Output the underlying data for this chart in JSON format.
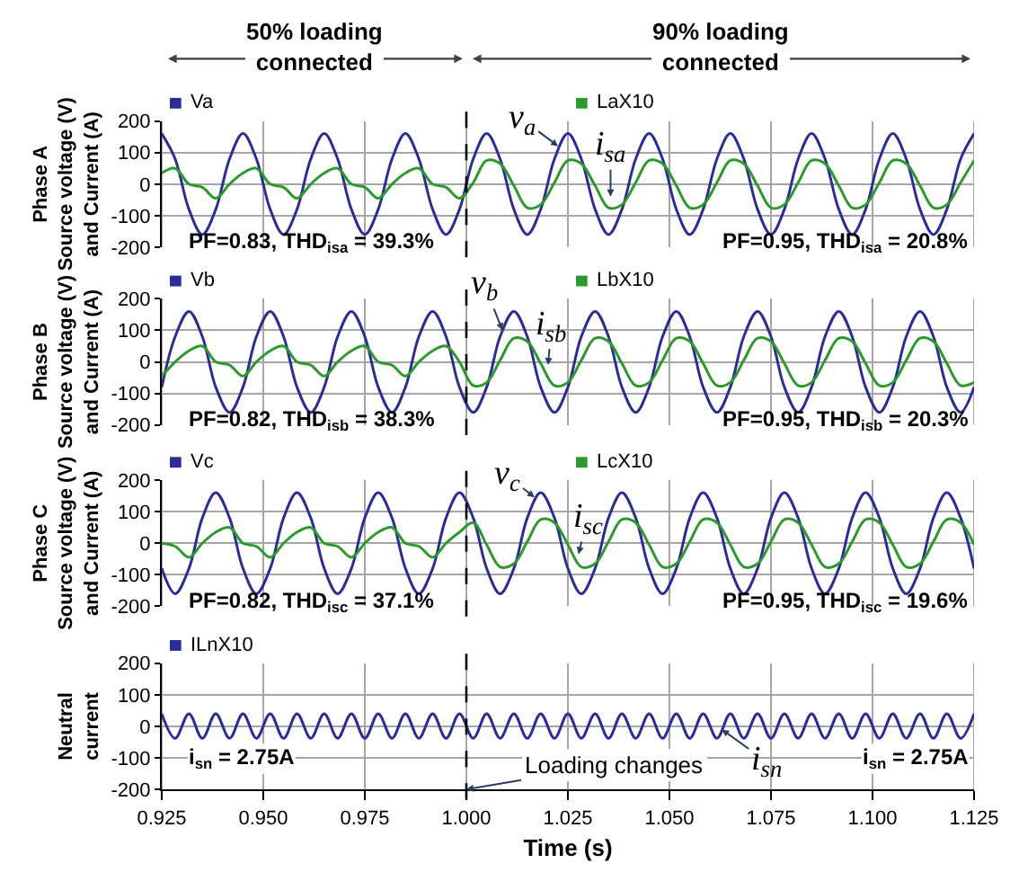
{
  "chart_data": [
    {
      "type": "line",
      "ylabel": "Phase A\nSource voltage (V)\nand Current (A)",
      "xlim": [
        0.925,
        1.125
      ],
      "xticks": [
        0.925,
        0.95,
        0.975,
        1.0,
        1.025,
        1.05,
        1.075,
        1.1,
        1.125
      ],
      "ylim": [
        -200,
        200
      ],
      "yticks": [
        -200,
        -100,
        0,
        100,
        200
      ],
      "grid": true,
      "legend": "top",
      "tick_labels": "y",
      "x": [
        0.925,
        0.9283,
        0.9317,
        0.935,
        0.9383,
        0.9417,
        0.945,
        0.9483,
        0.9517,
        0.955,
        0.9583,
        0.9617,
        0.965,
        0.9683,
        0.9717,
        0.975,
        0.9783,
        0.9817,
        0.985,
        0.9883,
        0.9917,
        0.995,
        0.9983,
        1.0017,
        1.005,
        1.0083,
        1.0117,
        1.015,
        1.0183,
        1.0217,
        1.025,
        1.0283,
        1.0317,
        1.035,
        1.0383,
        1.0417,
        1.045,
        1.0483,
        1.0517,
        1.055,
        1.0583,
        1.0617,
        1.065,
        1.0683,
        1.0717,
        1.075,
        1.0783,
        1.0817,
        1.085,
        1.0883,
        1.0917,
        1.095,
        1.0983,
        1.1017,
        1.105,
        1.1083,
        1.1117,
        1.115,
        1.1183,
        1.1217,
        1.125
      ],
      "ref_lines": [
        {
          "axis": "x",
          "value": 1.0,
          "line_style": "dashed"
        }
      ],
      "annotations": [
        "50% loading\nconnected",
        "90% loading\nconnected",
        "PF=0.83, THD$_{isa}$ = 39.3%",
        "PF=0.95, THD$_{isa}$ = 20.8%",
        {
          "text": "v$_{a}$",
          "x": 1.0226,
          "y": 120
        },
        {
          "text": "i$_{sa}$",
          "x": 1.0355,
          "y": -40
        }
      ],
      "series": [
        {
          "name": "Va",
          "color": "#2b2b9a",
          "values": [
            160,
            80,
            -80,
            -160,
            -80,
            80,
            160,
            80,
            -80,
            -160,
            -80,
            80,
            160,
            80,
            -80,
            -160,
            -80,
            80,
            160,
            80,
            -80,
            -160,
            -80,
            80,
            160,
            80,
            -80,
            -160,
            -80,
            80,
            160,
            80,
            -80,
            -160,
            -80,
            80,
            160,
            80,
            -80,
            -160,
            -80,
            80,
            160,
            80,
            -80,
            -160,
            -80,
            80,
            160,
            80,
            -80,
            -160,
            -80,
            80,
            160,
            80,
            -80,
            -160,
            -80,
            80,
            160
          ]
        },
        {
          "name": "LaX10",
          "color": "#2a9a2a",
          "values": [
            35,
            50,
            0,
            -10,
            -45,
            0,
            35,
            50,
            0,
            -10,
            -45,
            0,
            35,
            50,
            0,
            -10,
            -45,
            0,
            35,
            50,
            0,
            -10,
            -45,
            5,
            75,
            65,
            -5,
            -75,
            -65,
            5,
            75,
            65,
            -5,
            -75,
            -65,
            5,
            75,
            65,
            -5,
            -75,
            -65,
            5,
            75,
            65,
            -5,
            -75,
            -65,
            5,
            75,
            65,
            -5,
            -75,
            -65,
            5,
            75,
            65,
            -5,
            -75,
            -65,
            5,
            75
          ]
        }
      ]
    },
    {
      "type": "line",
      "ylabel": "Phase B\nSource voltage (V)\nand Current (A)",
      "xlim": [
        0.925,
        1.125
      ],
      "xticks": [
        0.925,
        0.95,
        0.975,
        1.0,
        1.025,
        1.05,
        1.075,
        1.1,
        1.125
      ],
      "ylim": [
        -200,
        200
      ],
      "yticks": [
        -200,
        -100,
        0,
        100,
        200
      ],
      "grid": true,
      "legend": "top",
      "tick_labels": "y",
      "x": [
        0.925,
        0.9283,
        0.9317,
        0.935,
        0.9383,
        0.9417,
        0.945,
        0.9483,
        0.9517,
        0.955,
        0.9583,
        0.9617,
        0.965,
        0.9683,
        0.9717,
        0.975,
        0.9783,
        0.9817,
        0.985,
        0.9883,
        0.9917,
        0.995,
        0.9983,
        1.0017,
        1.005,
        1.0083,
        1.0117,
        1.015,
        1.0183,
        1.0217,
        1.025,
        1.0283,
        1.0317,
        1.035,
        1.0383,
        1.0417,
        1.045,
        1.0483,
        1.0517,
        1.055,
        1.0583,
        1.0617,
        1.065,
        1.0683,
        1.0717,
        1.075,
        1.0783,
        1.0817,
        1.085,
        1.0883,
        1.0917,
        1.095,
        1.0983,
        1.1017,
        1.105,
        1.1083,
        1.1117,
        1.115,
        1.1183,
        1.1217,
        1.125
      ],
      "ref_lines": [
        {
          "axis": "x",
          "value": 1.0,
          "line_style": "dashed"
        }
      ],
      "annotations": [
        "PF=0.82, THD$_{isb}$ = 38.3%",
        "PF=0.95, THD$_{isb}$ = 20.3%",
        {
          "text": "v$_{b}$",
          "x": 1.0089,
          "y": 100
        },
        {
          "text": "i$_{sb}$",
          "x": 1.0201,
          "y": -10
        }
      ],
      "series": [
        {
          "name": "Vb",
          "color": "#2b2b9a",
          "values": [
            -80,
            80,
            160,
            80,
            -80,
            -160,
            -80,
            80,
            160,
            80,
            -80,
            -160,
            -80,
            80,
            160,
            80,
            -80,
            -160,
            -80,
            80,
            160,
            80,
            -80,
            -160,
            -80,
            80,
            160,
            80,
            -80,
            -160,
            -80,
            80,
            160,
            80,
            -80,
            -160,
            -80,
            80,
            160,
            80,
            -80,
            -160,
            -80,
            80,
            160,
            80,
            -80,
            -160,
            -80,
            80,
            160,
            80,
            -80,
            -160,
            -80,
            80,
            160,
            80,
            -80,
            -160,
            -80
          ]
        },
        {
          "name": "LbX10",
          "color": "#2a9a2a",
          "values": [
            -45,
            0,
            35,
            50,
            0,
            -10,
            -45,
            0,
            35,
            50,
            0,
            -10,
            -45,
            0,
            35,
            50,
            0,
            -10,
            -45,
            0,
            35,
            50,
            0,
            -75,
            -65,
            5,
            75,
            65,
            -5,
            -75,
            -65,
            5,
            75,
            65,
            -5,
            -75,
            -65,
            5,
            75,
            65,
            -5,
            -75,
            -65,
            5,
            75,
            65,
            -5,
            -75,
            -65,
            5,
            75,
            65,
            -5,
            -75,
            -65,
            5,
            75,
            65,
            -5,
            -75,
            -65
          ]
        }
      ]
    },
    {
      "type": "line",
      "ylabel": "Phase C\nSource voltage (V)\nand Current (A)",
      "xlim": [
        0.925,
        1.125
      ],
      "xticks": [
        0.925,
        0.95,
        0.975,
        1.0,
        1.025,
        1.05,
        1.075,
        1.1,
        1.125
      ],
      "ylim": [
        -200,
        200
      ],
      "yticks": [
        -200,
        -100,
        0,
        100,
        200
      ],
      "grid": true,
      "legend": "top",
      "tick_labels": "y",
      "x": [
        0.925,
        0.9283,
        0.9317,
        0.935,
        0.9383,
        0.9417,
        0.945,
        0.9483,
        0.9517,
        0.955,
        0.9583,
        0.9617,
        0.965,
        0.9683,
        0.9717,
        0.975,
        0.9783,
        0.9817,
        0.985,
        0.9883,
        0.9917,
        0.995,
        0.9983,
        1.0017,
        1.005,
        1.0083,
        1.0117,
        1.015,
        1.0183,
        1.0217,
        1.025,
        1.0283,
        1.0317,
        1.035,
        1.0383,
        1.0417,
        1.045,
        1.0483,
        1.0517,
        1.055,
        1.0583,
        1.0617,
        1.065,
        1.0683,
        1.0717,
        1.075,
        1.0783,
        1.0817,
        1.085,
        1.0883,
        1.0917,
        1.095,
        1.0983,
        1.1017,
        1.105,
        1.1083,
        1.1117,
        1.115,
        1.1183,
        1.1217,
        1.125
      ],
      "ref_lines": [
        {
          "axis": "x",
          "value": 1.0,
          "line_style": "dashed"
        }
      ],
      "annotations": [
        "PF=0.82, THD$_{isc}$ = 37.1%",
        "PF=0.95, THD$_{isc}$ = 19.6%",
        {
          "text": "v$_{c}$",
          "x": 1.0168,
          "y": 145
        },
        {
          "text": "i$_{sc}$",
          "x": 1.0276,
          "y": -35
        }
      ],
      "series": [
        {
          "name": "Vc",
          "color": "#2b2b9a",
          "values": [
            -80,
            -160,
            -80,
            80,
            160,
            80,
            -80,
            -160,
            -80,
            80,
            160,
            80,
            -80,
            -160,
            -80,
            80,
            160,
            80,
            -80,
            -160,
            -80,
            80,
            160,
            80,
            -80,
            -160,
            -80,
            80,
            160,
            80,
            -80,
            -160,
            -80,
            80,
            160,
            80,
            -80,
            -160,
            -80,
            80,
            160,
            80,
            -80,
            -160,
            -80,
            80,
            160,
            80,
            -80,
            -160,
            -80,
            80,
            160,
            80,
            -80,
            -160,
            -80,
            80,
            160,
            80,
            -80
          ]
        },
        {
          "name": "LcX10",
          "color": "#2a9a2a",
          "values": [
            0,
            -10,
            -45,
            0,
            35,
            50,
            0,
            -10,
            -45,
            0,
            35,
            50,
            0,
            -10,
            -45,
            0,
            35,
            50,
            0,
            -10,
            -45,
            0,
            35,
            65,
            -5,
            -75,
            -65,
            5,
            75,
            65,
            -5,
            -75,
            -65,
            5,
            75,
            65,
            -5,
            -75,
            -65,
            5,
            75,
            65,
            -5,
            -75,
            -65,
            5,
            75,
            65,
            -5,
            -75,
            -65,
            5,
            75,
            65,
            -5,
            -75,
            -65,
            5,
            75,
            65,
            -5
          ]
        }
      ]
    },
    {
      "type": "line",
      "ylabel": "Neutral\ncurrent",
      "xlabel": "Time (s)",
      "xlim": [
        0.925,
        1.125
      ],
      "xticks": [
        0.925,
        {
          "value": 0.95,
          "label": "0.950"
        },
        0.975,
        {
          "value": 1.0,
          "label": "1.000"
        },
        1.025,
        {
          "value": 1.05,
          "label": "1.050"
        },
        1.075,
        {
          "value": 1.1,
          "label": "1.100"
        },
        1.125
      ],
      "ylim": [
        -200,
        200
      ],
      "yticks": [
        -200,
        -100,
        0,
        100,
        200
      ],
      "grid": true,
      "legend": "top",
      "x": [
        0.925,
        0.9283,
        0.9317,
        0.935,
        0.9383,
        0.9417,
        0.945,
        0.9483,
        0.9517,
        0.955,
        0.9583,
        0.9617,
        0.965,
        0.9683,
        0.9717,
        0.975,
        0.9783,
        0.9817,
        0.985,
        0.9883,
        0.9917,
        0.995,
        0.9983,
        1.0017,
        1.005,
        1.0083,
        1.0117,
        1.015,
        1.0183,
        1.0217,
        1.025,
        1.0283,
        1.0317,
        1.035,
        1.0383,
        1.0417,
        1.045,
        1.0483,
        1.0517,
        1.055,
        1.0583,
        1.0617,
        1.065,
        1.0683,
        1.0717,
        1.075,
        1.0783,
        1.0817,
        1.085,
        1.0883,
        1.0917,
        1.095,
        1.0983,
        1.1017,
        1.105,
        1.1083,
        1.1117,
        1.115,
        1.1183,
        1.1217,
        1.125
      ],
      "ref_lines": [
        {
          "axis": "x",
          "value": 1.0,
          "line_style": "dashed",
          "label": "Loading changes"
        }
      ],
      "annotations": [
        "i$_{sn}$ = 2.75A",
        "i$_{sn}$ = 2.75A",
        {
          "text": "i$_{sn}$",
          "x": 1.0629,
          "y": -10
        }
      ],
      "series": [
        {
          "name": "ILnX10",
          "color": "#2b2b9a",
          "values": [
            40,
            -38,
            40,
            -38,
            40,
            -38,
            40,
            -38,
            40,
            -38,
            40,
            -38,
            40,
            -38,
            40,
            -38,
            40,
            -38,
            40,
            -38,
            40,
            -38,
            40,
            -38,
            40,
            -38,
            40,
            -38,
            40,
            -38,
            40,
            -38,
            40,
            -38,
            40,
            -38,
            40,
            -38,
            40,
            -38,
            40,
            -38,
            40,
            -38,
            40,
            -38,
            40,
            -38,
            40,
            -38,
            40,
            -38,
            40,
            -38,
            40,
            -38,
            40,
            -38,
            40,
            -38,
            40
          ]
        }
      ]
    }
  ]
}
